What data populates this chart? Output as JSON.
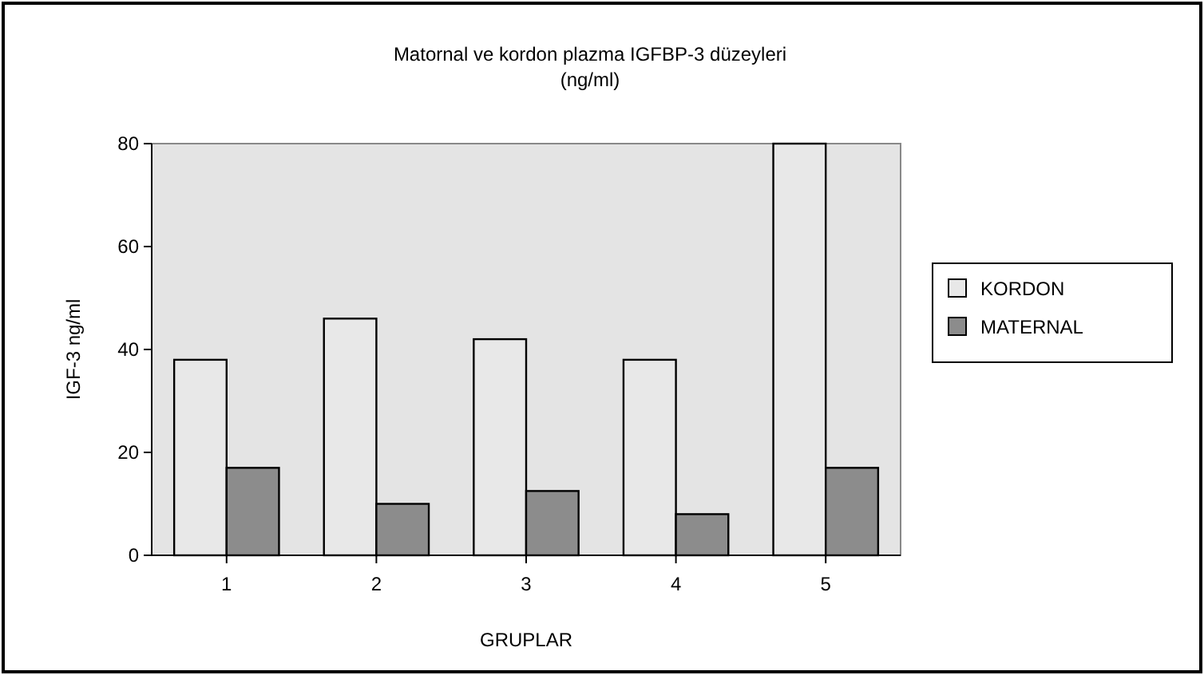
{
  "chart_data": {
    "type": "bar",
    "title": "Matornal ve kordon plazma IGFBP-3 düzeyleri",
    "subtitle": "(ng/ml)",
    "xlabel": "GRUPLAR",
    "ylabel": "IGF-3 ng/ml",
    "categories": [
      "1",
      "2",
      "3",
      "4",
      "5"
    ],
    "series": [
      {
        "name": "KORDON",
        "color": "#e8e8e8",
        "values": [
          38,
          46,
          42,
          38,
          80
        ]
      },
      {
        "name": "MATERNAL",
        "color": "#8c8c8c",
        "values": [
          17,
          10,
          12.5,
          8,
          17
        ]
      }
    ],
    "ylim": [
      0,
      80
    ],
    "yticks": [
      0,
      20,
      40,
      60,
      80
    ],
    "grid": false,
    "legend": "right"
  }
}
